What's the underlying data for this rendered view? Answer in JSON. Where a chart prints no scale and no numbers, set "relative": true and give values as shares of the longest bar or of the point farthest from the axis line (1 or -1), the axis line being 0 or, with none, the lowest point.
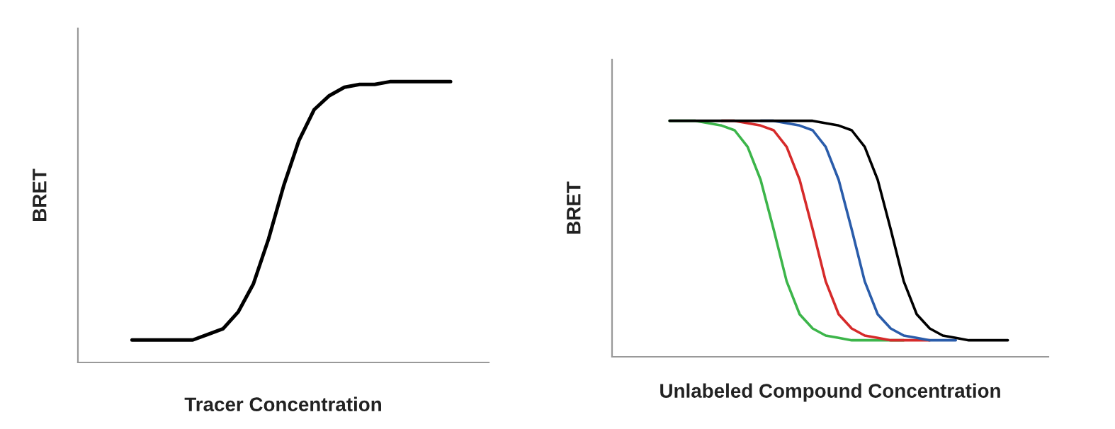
{
  "chart_data": [
    {
      "type": "line",
      "xlabel": "Tracer Concentration",
      "ylabel": "BRET",
      "relative": true,
      "categories": [
        null,
        null,
        null,
        null,
        null,
        null,
        null,
        null,
        null,
        null,
        null,
        null,
        null,
        null,
        null,
        null,
        null,
        null,
        null,
        null,
        null,
        null
      ],
      "series": [
        {
          "color": "#000000",
          "values": [
            0.08,
            0.08,
            0.08,
            0.08,
            0.08,
            0.1,
            0.12,
            0.18,
            0.28,
            0.44,
            0.63,
            0.79,
            0.9,
            0.95,
            0.98,
            0.99,
            0.99,
            1.0,
            1.0,
            1.0,
            1.0,
            1.0
          ]
        }
      ]
    },
    {
      "type": "line",
      "xlabel": "Unlabeled Compound Concentration",
      "ylabel": "BRET",
      "relative": true,
      "categories": [
        null,
        null,
        null,
        null,
        null,
        null,
        null,
        null,
        null,
        null,
        null,
        null,
        null,
        null,
        null,
        null,
        null,
        null,
        null,
        null,
        null,
        null,
        null,
        null,
        null,
        null,
        null
      ],
      "series": [
        {
          "color": "#3cb54a",
          "values": [
            1,
            1,
            1,
            0.99,
            0.98,
            0.96,
            0.89,
            0.75,
            0.54,
            0.32,
            0.18,
            0.12,
            0.09,
            0.08,
            0.07,
            0.07,
            0.07,
            0.07,
            0.07,
            null,
            null,
            null,
            null,
            null,
            null,
            null,
            null
          ]
        },
        {
          "color": "#d62a2a",
          "values": [
            null,
            null,
            null,
            null,
            1,
            1,
            0.99,
            0.98,
            0.96,
            0.89,
            0.75,
            0.54,
            0.32,
            0.18,
            0.12,
            0.09,
            0.08,
            0.07,
            0.07,
            0.07,
            0.07,
            null,
            null,
            null,
            null,
            null,
            null
          ]
        },
        {
          "color": "#2a5caa",
          "values": [
            null,
            null,
            null,
            null,
            null,
            null,
            null,
            1,
            1,
            0.99,
            0.98,
            0.96,
            0.89,
            0.75,
            0.54,
            0.32,
            0.18,
            0.12,
            0.09,
            0.08,
            0.07,
            0.07,
            0.07,
            null,
            null,
            null,
            null
          ]
        },
        {
          "color": "#000000",
          "values": [
            1,
            1,
            1,
            1,
            1,
            1,
            1,
            1,
            1,
            1,
            1,
            1,
            0.99,
            0.98,
            0.96,
            0.89,
            0.75,
            0.54,
            0.32,
            0.18,
            0.12,
            0.09,
            0.08,
            0.07,
            0.07,
            0.07,
            0.07
          ]
        }
      ]
    }
  ]
}
